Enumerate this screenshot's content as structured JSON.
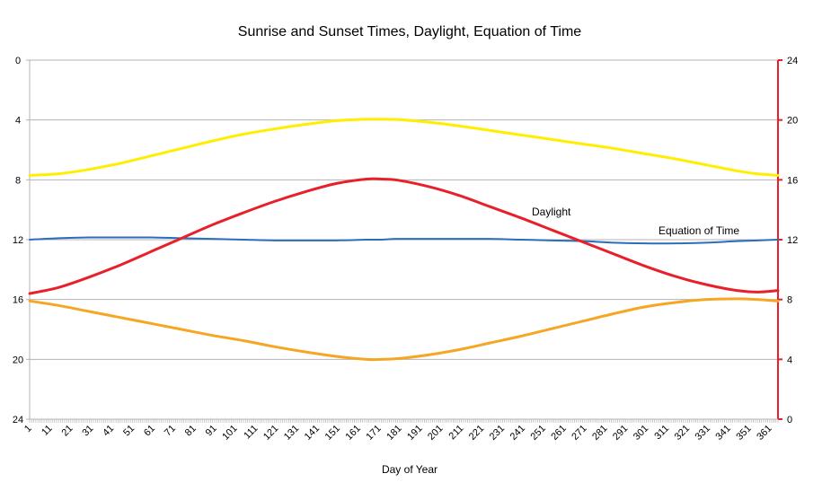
{
  "chart_data": {
    "type": "line",
    "title": "Sunrise and Sunset Times, Daylight, Equation of Time",
    "xlabel": "Day of Year",
    "ylabel": "",
    "y2label": "",
    "xlim": [
      1,
      365
    ],
    "ylim": [
      0,
      24
    ],
    "y_inverted": true,
    "y_ticks": [
      0,
      4,
      8,
      12,
      16,
      20,
      24
    ],
    "y2lim": [
      0,
      24
    ],
    "y2_ticks": [
      0,
      4,
      8,
      12,
      16,
      20,
      24
    ],
    "y2_axis_color": "#e8202a",
    "x_tick_labels": [
      "1",
      "11",
      "21",
      "31",
      "41",
      "51",
      "61",
      "71",
      "81",
      "91",
      "101",
      "111",
      "121",
      "131",
      "141",
      "151",
      "161",
      "171",
      "181",
      "191",
      "201",
      "211",
      "221",
      "231",
      "241",
      "251",
      "261",
      "271",
      "281",
      "291",
      "301",
      "311",
      "321",
      "331",
      "341",
      "351",
      "361"
    ],
    "grid": "horizontal",
    "series": [
      {
        "color": "#ffee00",
        "axis": "left",
        "x": [
          1,
          15,
          30,
          45,
          60,
          75,
          90,
          105,
          120,
          135,
          150,
          165,
          172,
          180,
          195,
          210,
          225,
          240,
          255,
          270,
          285,
          300,
          315,
          330,
          345,
          355,
          365
        ],
        "y": [
          7.7,
          7.6,
          7.3,
          6.9,
          6.4,
          5.9,
          5.4,
          4.95,
          4.6,
          4.3,
          4.05,
          3.95,
          3.95,
          3.97,
          4.15,
          4.4,
          4.7,
          5.0,
          5.3,
          5.6,
          5.9,
          6.25,
          6.6,
          7.0,
          7.4,
          7.6,
          7.7
        ]
      },
      {
        "color": "#f5a623",
        "axis": "left",
        "x": [
          1,
          15,
          30,
          45,
          60,
          75,
          90,
          105,
          120,
          135,
          150,
          165,
          172,
          180,
          195,
          210,
          225,
          240,
          255,
          270,
          285,
          300,
          315,
          330,
          345,
          355,
          365
        ],
        "y": [
          16.1,
          16.4,
          16.8,
          17.2,
          17.6,
          18.0,
          18.4,
          18.75,
          19.15,
          19.5,
          19.8,
          20.0,
          20.0,
          19.95,
          19.7,
          19.35,
          18.9,
          18.45,
          17.95,
          17.45,
          16.95,
          16.5,
          16.2,
          16.0,
          15.95,
          16.0,
          16.1
        ]
      },
      {
        "name": "Equation of Time",
        "color": "#2a6ebb",
        "axis": "left",
        "x": [
          1,
          15,
          30,
          45,
          60,
          75,
          90,
          105,
          120,
          135,
          150,
          165,
          172,
          180,
          195,
          210,
          225,
          240,
          255,
          270,
          285,
          300,
          315,
          330,
          345,
          355,
          365
        ],
        "y": [
          12.0,
          11.9,
          11.85,
          11.85,
          11.85,
          11.9,
          11.95,
          12.0,
          12.05,
          12.05,
          12.05,
          12.0,
          12.0,
          11.95,
          11.95,
          11.95,
          11.95,
          12.0,
          12.05,
          12.1,
          12.2,
          12.25,
          12.25,
          12.2,
          12.1,
          12.05,
          12.0
        ]
      },
      {
        "name": "Daylight",
        "color": "#e8202a",
        "axis": "right",
        "x": [
          1,
          15,
          30,
          45,
          60,
          75,
          90,
          105,
          120,
          135,
          150,
          165,
          172,
          180,
          195,
          210,
          225,
          240,
          255,
          270,
          285,
          300,
          315,
          330,
          345,
          355,
          365
        ],
        "y": [
          8.4,
          8.8,
          9.5,
          10.3,
          11.2,
          12.1,
          13.0,
          13.8,
          14.55,
          15.2,
          15.75,
          16.05,
          16.05,
          15.98,
          15.55,
          14.95,
          14.2,
          13.45,
          12.65,
          11.85,
          11.05,
          10.25,
          9.55,
          9.0,
          8.6,
          8.5,
          8.6
        ]
      }
    ],
    "annotations": [
      "Daylight",
      "Equation of Time"
    ]
  }
}
